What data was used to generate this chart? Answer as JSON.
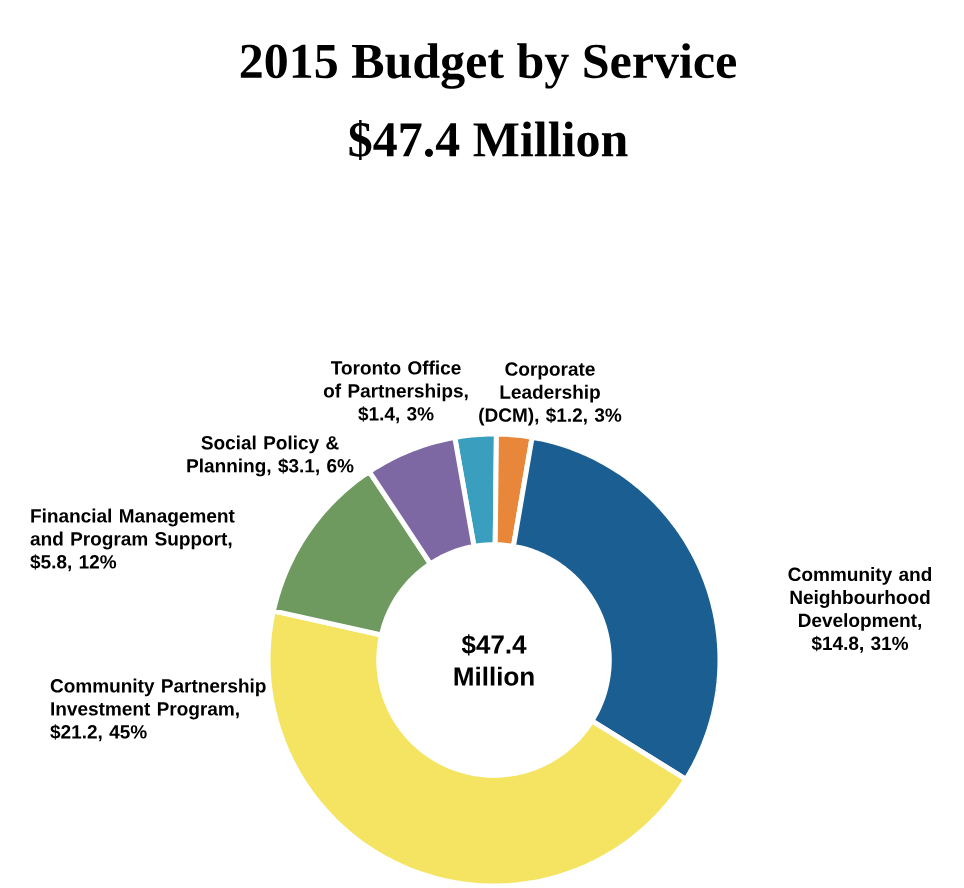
{
  "chart_data": {
    "type": "donut",
    "title": "2015 Budget by Service",
    "subtitle": "$47.4 Million",
    "categories": [
      "Toronto Office of Partnerships, $1.4, 3%",
      "Corporate Leadership (DCM), $1.2, 3%",
      "Community and Neighbourhood Development, $14.8, 31%",
      "Community Partnership Investment Program, $21.2, 45%",
      "Financial Management and Program Support, $5.8, 12%",
      "Social Policy & Planning, $3.1, 6%"
    ],
    "values": [
      1.4,
      1.2,
      14.8,
      21.2,
      5.8,
      3.1
    ],
    "colors": [
      "#3a9fbf",
      "#e8873a",
      "#1b5e91",
      "#f4e462",
      "#6e9a5f",
      "#7e68a4"
    ],
    "annotations": [
      "$47.4 Million"
    ]
  }
}
